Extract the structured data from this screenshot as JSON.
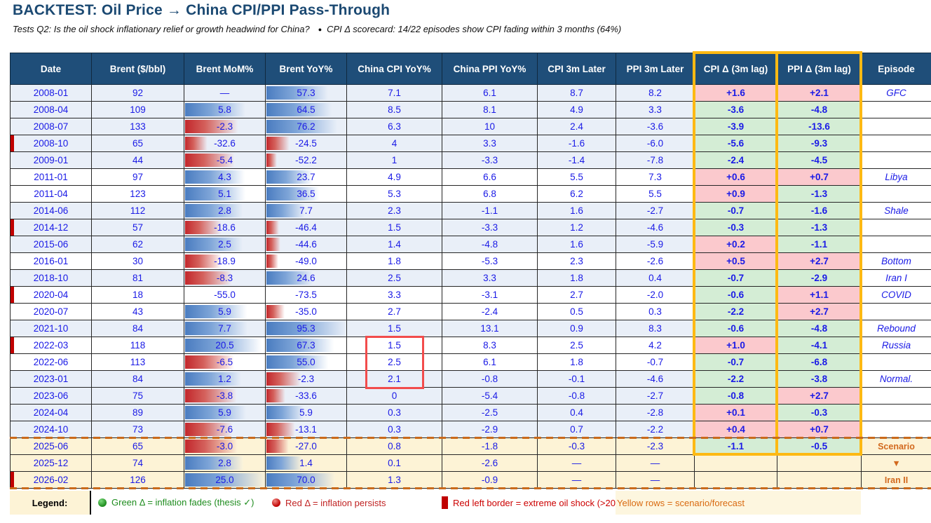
{
  "page": {
    "title": "BACKTEST: Oil Price → China CPI/PPI Pass-Through",
    "subtitle_left": "Tests Q2: Is the oil shock inflationary relief or growth headwind for China?",
    "subtitle_sep": "●",
    "subtitle_right": "CPI Δ scorecard: 14/22 episodes show CPI fading within 3 months (64%)"
  },
  "colors": {
    "title_navy": "#1B4972",
    "header_bg": "#1F4E79",
    "row_blue": "#E9EFF8",
    "row_yellow": "#FDF3D6",
    "value_blue": "#1A1AE6",
    "bar_blue": "#4A7CC0",
    "bar_red": "#C2272B",
    "delta_pos_bg": "#FBC9CD",
    "delta_pos_text": "#B00000",
    "delta_neg_bg": "#D4EDD5",
    "delta_neg_text": "#177117",
    "highlight_yellow": "#FDB913",
    "focus_red": "#F24C4C",
    "shock_red": "#C00000",
    "dash_orange": "#C96A1B",
    "scenario_orange": "#D2691E"
  },
  "table": {
    "columns": [
      "Date",
      "Brent ($/bbl)",
      "Brent MoM%",
      "Brent YoY%",
      "China CPI YoY%",
      "China PPI YoY%",
      "CPI 3m Later",
      "PPI 3m Later",
      "CPI Δ (3m lag)",
      "PPI Δ (3m lag)",
      "Episode"
    ],
    "bar_scales": {
      "mom": {
        "min": -55.0,
        "max": 25.0
      },
      "yoy": {
        "min": -73.5,
        "max": 95.3
      }
    },
    "rows": [
      {
        "date": "2008-01",
        "brent": "92",
        "mom": "—",
        "yoy": "57.3",
        "cpi": "7.1",
        "ppi": "6.1",
        "cpi3m": "8.7",
        "ppi3m": "8.2",
        "cpiD": "+1.6",
        "ppiD": "+2.1",
        "episode": "GFC",
        "shade": "b",
        "redLeft": false
      },
      {
        "date": "2008-04",
        "brent": "109",
        "mom": "5.8",
        "yoy": "64.5",
        "cpi": "8.5",
        "ppi": "8.1",
        "cpi3m": "4.9",
        "ppi3m": "3.3",
        "cpiD": "-3.6",
        "ppiD": "-4.8",
        "episode": "",
        "shade": "b",
        "redLeft": false
      },
      {
        "date": "2008-07",
        "brent": "133",
        "mom": "-2.3",
        "yoy": "76.2",
        "cpi": "6.3",
        "ppi": "10",
        "cpi3m": "2.4",
        "ppi3m": "-3.6",
        "cpiD": "-3.9",
        "ppiD": "-13.6",
        "episode": "",
        "shade": "b",
        "redLeft": false
      },
      {
        "date": "2008-10",
        "brent": "65",
        "mom": "-32.6",
        "yoy": "-24.5",
        "cpi": "4",
        "ppi": "3.3",
        "cpi3m": "-1.6",
        "ppi3m": "-6.0",
        "cpiD": "-5.6",
        "ppiD": "-9.3",
        "episode": "",
        "shade": "b",
        "redLeft": true
      },
      {
        "date": "2009-01",
        "brent": "44",
        "mom": "-5.4",
        "yoy": "-52.2",
        "cpi": "1",
        "ppi": "-3.3",
        "cpi3m": "-1.4",
        "ppi3m": "-7.8",
        "cpiD": "-2.4",
        "ppiD": "-4.5",
        "episode": "",
        "shade": "b",
        "redLeft": false
      },
      {
        "date": "2011-01",
        "brent": "97",
        "mom": "4.3",
        "yoy": "23.7",
        "cpi": "4.9",
        "ppi": "6.6",
        "cpi3m": "5.5",
        "ppi3m": "7.3",
        "cpiD": "+0.6",
        "ppiD": "+0.7",
        "episode": "Libya",
        "shade": "w",
        "redLeft": false
      },
      {
        "date": "2011-04",
        "brent": "123",
        "mom": "5.1",
        "yoy": "36.5",
        "cpi": "5.3",
        "ppi": "6.8",
        "cpi3m": "6.2",
        "ppi3m": "5.5",
        "cpiD": "+0.9",
        "ppiD": "-1.3",
        "episode": "",
        "shade": "w",
        "redLeft": false
      },
      {
        "date": "2014-06",
        "brent": "112",
        "mom": "2.8",
        "yoy": "7.7",
        "cpi": "2.3",
        "ppi": "-1.1",
        "cpi3m": "1.6",
        "ppi3m": "-2.7",
        "cpiD": "-0.7",
        "ppiD": "-1.6",
        "episode": "Shale",
        "shade": "b",
        "redLeft": false
      },
      {
        "date": "2014-12",
        "brent": "57",
        "mom": "-18.6",
        "yoy": "-46.4",
        "cpi": "1.5",
        "ppi": "-3.3",
        "cpi3m": "1.2",
        "ppi3m": "-4.6",
        "cpiD": "-0.3",
        "ppiD": "-1.3",
        "episode": "",
        "shade": "b",
        "redLeft": true
      },
      {
        "date": "2015-06",
        "brent": "62",
        "mom": "2.5",
        "yoy": "-44.6",
        "cpi": "1.4",
        "ppi": "-4.8",
        "cpi3m": "1.6",
        "ppi3m": "-5.9",
        "cpiD": "+0.2",
        "ppiD": "-1.1",
        "episode": "",
        "shade": "b",
        "redLeft": false
      },
      {
        "date": "2016-01",
        "brent": "30",
        "mom": "-18.9",
        "yoy": "-49.0",
        "cpi": "1.8",
        "ppi": "-5.3",
        "cpi3m": "2.3",
        "ppi3m": "-2.6",
        "cpiD": "+0.5",
        "ppiD": "+2.7",
        "episode": "Bottom",
        "shade": "w",
        "redLeft": false
      },
      {
        "date": "2018-10",
        "brent": "81",
        "mom": "-8.3",
        "yoy": "24.6",
        "cpi": "2.5",
        "ppi": "3.3",
        "cpi3m": "1.8",
        "ppi3m": "0.4",
        "cpiD": "-0.7",
        "ppiD": "-2.9",
        "episode": "Iran I",
        "shade": "b",
        "redLeft": false
      },
      {
        "date": "2020-04",
        "brent": "18",
        "mom": "-55.0",
        "yoy": "-73.5",
        "cpi": "3.3",
        "ppi": "-3.1",
        "cpi3m": "2.7",
        "ppi3m": "-2.0",
        "cpiD": "-0.6",
        "ppiD": "+1.1",
        "episode": "COVID",
        "shade": "w",
        "redLeft": true
      },
      {
        "date": "2020-07",
        "brent": "43",
        "mom": "5.9",
        "yoy": "-35.0",
        "cpi": "2.7",
        "ppi": "-2.4",
        "cpi3m": "0.5",
        "ppi3m": "0.3",
        "cpiD": "-2.2",
        "ppiD": "+2.7",
        "episode": "",
        "shade": "w",
        "redLeft": false
      },
      {
        "date": "2021-10",
        "brent": "84",
        "mom": "7.7",
        "yoy": "95.3",
        "cpi": "1.5",
        "ppi": "13.1",
        "cpi3m": "0.9",
        "ppi3m": "8.3",
        "cpiD": "-0.6",
        "ppiD": "-4.8",
        "episode": "Rebound",
        "shade": "b",
        "redLeft": false
      },
      {
        "date": "2022-03",
        "brent": "118",
        "mom": "20.5",
        "yoy": "67.3",
        "cpi": "1.5",
        "ppi": "8.3",
        "cpi3m": "2.5",
        "ppi3m": "4.2",
        "cpiD": "+1.0",
        "ppiD": "-4.1",
        "episode": "Russia",
        "shade": "w",
        "redLeft": true
      },
      {
        "date": "2022-06",
        "brent": "113",
        "mom": "-6.5",
        "yoy": "55.0",
        "cpi": "2.5",
        "ppi": "6.1",
        "cpi3m": "1.8",
        "ppi3m": "-0.7",
        "cpiD": "-0.7",
        "ppiD": "-6.8",
        "episode": "",
        "shade": "w",
        "redLeft": false
      },
      {
        "date": "2023-01",
        "brent": "84",
        "mom": "1.2",
        "yoy": "-2.3",
        "cpi": "2.1",
        "ppi": "-0.8",
        "cpi3m": "-0.1",
        "ppi3m": "-4.6",
        "cpiD": "-2.2",
        "ppiD": "-3.8",
        "episode": "Normal.",
        "shade": "b",
        "redLeft": false
      },
      {
        "date": "2023-06",
        "brent": "75",
        "mom": "-3.8",
        "yoy": "-33.6",
        "cpi": "0",
        "ppi": "-5.4",
        "cpi3m": "-0.8",
        "ppi3m": "-2.7",
        "cpiD": "-0.8",
        "ppiD": "+2.7",
        "episode": "",
        "shade": "b",
        "redLeft": false
      },
      {
        "date": "2024-04",
        "brent": "89",
        "mom": "5.9",
        "yoy": "5.9",
        "cpi": "0.3",
        "ppi": "-2.5",
        "cpi3m": "0.4",
        "ppi3m": "-2.8",
        "cpiD": "+0.1",
        "ppiD": "-0.3",
        "episode": "",
        "shade": "b",
        "redLeft": false
      },
      {
        "date": "2024-10",
        "brent": "73",
        "mom": "-7.6",
        "yoy": "-13.1",
        "cpi": "0.3",
        "ppi": "-2.9",
        "cpi3m": "0.7",
        "ppi3m": "-2.2",
        "cpiD": "+0.4",
        "ppiD": "+0.7",
        "episode": "",
        "shade": "b",
        "redLeft": false
      },
      {
        "date": "2025-06",
        "brent": "65",
        "mom": "-3.0",
        "yoy": "-27.0",
        "cpi": "0.8",
        "ppi": "-1.8",
        "cpi3m": "-0.3",
        "ppi3m": "-2.3",
        "cpiD": "-1.1",
        "ppiD": "-0.5",
        "episode": "Scenario",
        "shade": "y",
        "redLeft": false
      },
      {
        "date": "2025-12",
        "brent": "74",
        "mom": "2.8",
        "yoy": "1.4",
        "cpi": "0.1",
        "ppi": "-2.6",
        "cpi3m": "—",
        "ppi3m": "—",
        "cpiD": "",
        "ppiD": "",
        "episode": "▼",
        "shade": "y",
        "redLeft": false
      },
      {
        "date": "2026-02",
        "brent": "126",
        "mom": "25.0",
        "yoy": "70.0",
        "cpi": "1.3",
        "ppi": "-0.9",
        "cpi3m": "—",
        "ppi3m": "—",
        "cpiD": "",
        "ppiD": "",
        "episode": "Iran II",
        "shade": "y",
        "redLeft": true
      }
    ]
  },
  "legend": {
    "label": "Legend:",
    "green_item": "Green Δ = inflation fades (thesis ✓)",
    "red_item": "Red Δ = inflation persists",
    "shock_item": "Red left border = extreme oil shock (>20",
    "yellow_item": "Yellow rows = scenario/forecast"
  }
}
